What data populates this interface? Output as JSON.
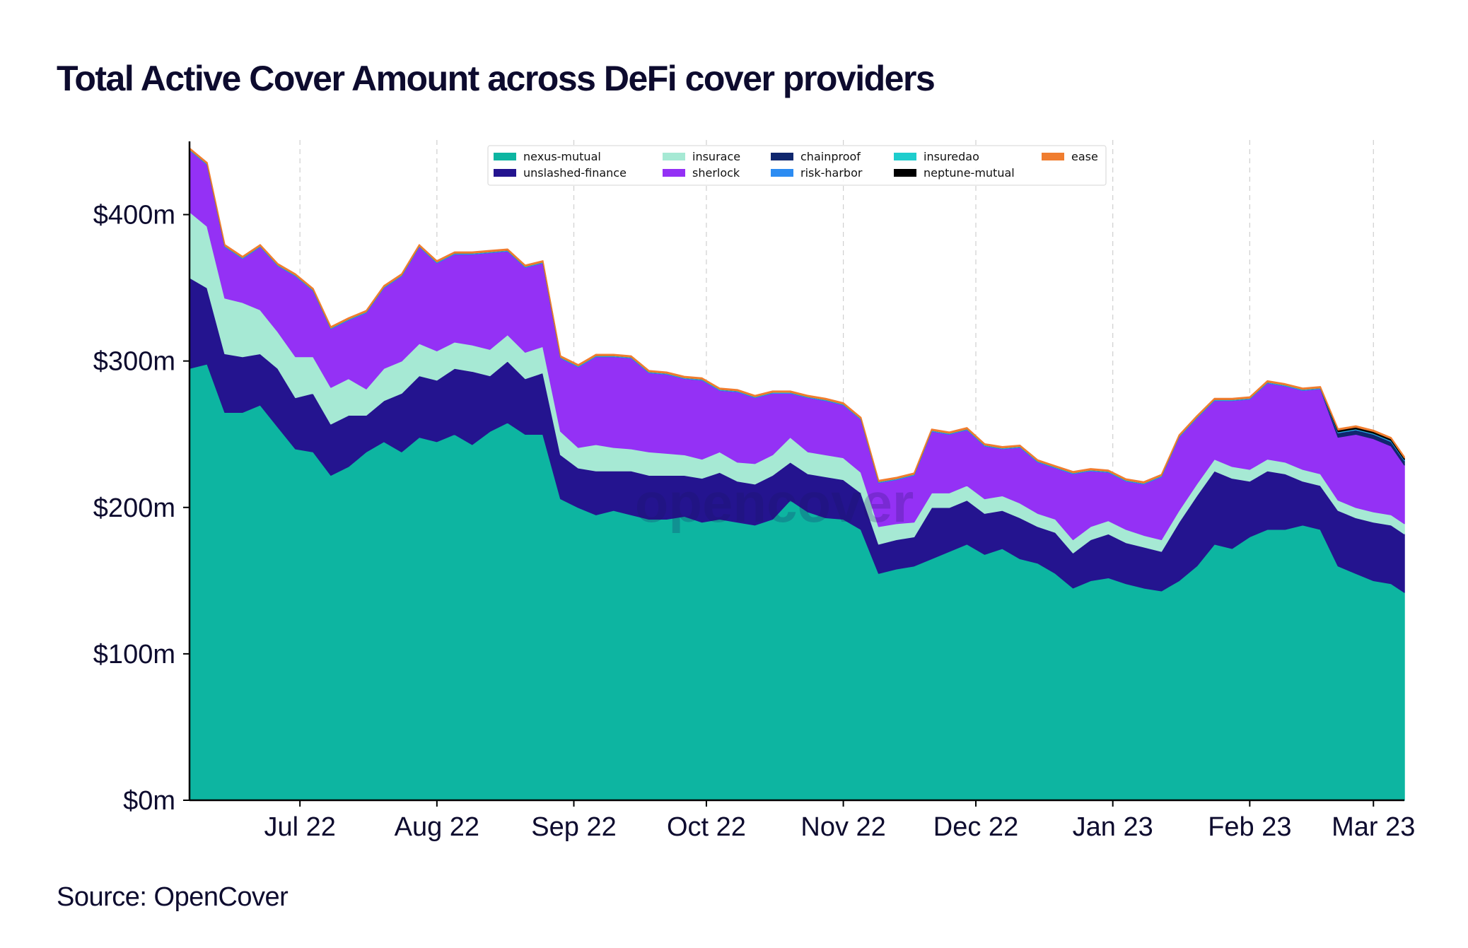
{
  "chart_data": {
    "type": "area",
    "stacked": true,
    "title": "Total Active Cover Amount across DeFi cover providers",
    "source": "Source: OpenCover",
    "watermark": "opencover",
    "xlabel": "",
    "ylabel": "",
    "x_range": [
      "2022-06-06",
      "2023-03-08"
    ],
    "ylim": [
      0,
      450
    ],
    "y_ticks": [
      0,
      100,
      200,
      300,
      400
    ],
    "y_tick_labels": [
      "$0m",
      "$100m",
      "$200m",
      "$300m",
      "$400m"
    ],
    "x_ticks": [
      "2022-07-01",
      "2022-08-01",
      "2022-09-01",
      "2022-10-01",
      "2022-11-01",
      "2022-12-01",
      "2023-01-01",
      "2023-02-01",
      "2023-03-01"
    ],
    "x_tick_labels": [
      "Jul 22",
      "Aug 22",
      "Sep 22",
      "Oct 22",
      "Nov 22",
      "Dec 22",
      "Jan 23",
      "Feb 23",
      "Mar 23"
    ],
    "grid": "vertical dashed at x ticks",
    "legend_placement": "top-center",
    "x": [
      "2022-06-06",
      "2022-06-10",
      "2022-06-14",
      "2022-06-18",
      "2022-06-22",
      "2022-06-26",
      "2022-06-30",
      "2022-07-04",
      "2022-07-08",
      "2022-07-12",
      "2022-07-16",
      "2022-07-20",
      "2022-07-24",
      "2022-07-28",
      "2022-08-01",
      "2022-08-05",
      "2022-08-09",
      "2022-08-13",
      "2022-08-17",
      "2022-08-21",
      "2022-08-25",
      "2022-08-29",
      "2022-09-02",
      "2022-09-06",
      "2022-09-10",
      "2022-09-14",
      "2022-09-18",
      "2022-09-22",
      "2022-09-26",
      "2022-09-30",
      "2022-10-04",
      "2022-10-08",
      "2022-10-12",
      "2022-10-16",
      "2022-10-20",
      "2022-10-24",
      "2022-10-28",
      "2022-11-01",
      "2022-11-05",
      "2022-11-09",
      "2022-11-13",
      "2022-11-17",
      "2022-11-21",
      "2022-11-25",
      "2022-11-29",
      "2022-12-03",
      "2022-12-07",
      "2022-12-11",
      "2022-12-15",
      "2022-12-19",
      "2022-12-23",
      "2022-12-27",
      "2022-12-31",
      "2023-01-04",
      "2023-01-08",
      "2023-01-12",
      "2023-01-16",
      "2023-01-20",
      "2023-01-24",
      "2023-01-28",
      "2023-02-01",
      "2023-02-05",
      "2023-02-09",
      "2023-02-13",
      "2023-02-17",
      "2023-02-21",
      "2023-02-25",
      "2023-03-01",
      "2023-03-05",
      "2023-03-08"
    ],
    "series": [
      {
        "name": "nexus-mutual",
        "color": "#0db5a1",
        "values": [
          295,
          298,
          265,
          265,
          270,
          255,
          240,
          238,
          222,
          228,
          238,
          245,
          238,
          248,
          245,
          250,
          243,
          252,
          258,
          250,
          250,
          206,
          200,
          195,
          198,
          195,
          192,
          192,
          194,
          190,
          192,
          190,
          188,
          192,
          205,
          197,
          193,
          192,
          185,
          155,
          158,
          160,
          165,
          170,
          175,
          168,
          172,
          165,
          162,
          155,
          145,
          150,
          152,
          148,
          145,
          143,
          150,
          160,
          175,
          172,
          180,
          185,
          185,
          188,
          185,
          160,
          155,
          150,
          148,
          142
        ]
      },
      {
        "name": "unslashed-finance",
        "color": "#24148f",
        "values": [
          62,
          52,
          40,
          38,
          35,
          40,
          35,
          40,
          35,
          35,
          25,
          28,
          40,
          42,
          42,
          45,
          50,
          38,
          42,
          38,
          42,
          30,
          27,
          30,
          27,
          30,
          30,
          30,
          28,
          30,
          32,
          28,
          28,
          30,
          26,
          26,
          28,
          27,
          25,
          20,
          20,
          20,
          35,
          30,
          30,
          28,
          26,
          28,
          25,
          28,
          24,
          28,
          30,
          28,
          28,
          27,
          40,
          48,
          50,
          48,
          38,
          40,
          38,
          30,
          30,
          38,
          38,
          40,
          40,
          40
        ]
      },
      {
        "name": "insurace",
        "color": "#a6e9d4",
        "values": [
          45,
          42,
          38,
          37,
          30,
          25,
          28,
          25,
          25,
          25,
          18,
          22,
          22,
          22,
          20,
          18,
          18,
          18,
          18,
          18,
          18,
          16,
          14,
          18,
          16,
          15,
          16,
          15,
          14,
          13,
          14,
          13,
          14,
          14,
          17,
          15,
          15,
          15,
          14,
          12,
          11,
          10,
          10,
          10,
          10,
          10,
          10,
          10,
          9,
          9,
          9,
          9,
          9,
          9,
          8,
          8,
          8,
          8,
          8,
          8,
          8,
          8,
          8,
          8,
          8,
          7,
          7,
          7,
          7,
          7
        ]
      },
      {
        "name": "sherlock",
        "color": "#9431f5",
        "values": [
          42,
          42,
          35,
          30,
          43,
          45,
          55,
          45,
          40,
          40,
          52,
          55,
          58,
          66,
          60,
          60,
          62,
          66,
          57,
          58,
          57,
          50,
          55,
          60,
          62,
          62,
          54,
          54,
          52,
          54,
          42,
          48,
          45,
          42,
          30,
          37,
          37,
          36,
          36,
          30,
          30,
          32,
          42,
          40,
          38,
          36,
          32,
          38,
          35,
          35,
          45,
          38,
          33,
          33,
          35,
          43,
          50,
          45,
          40,
          45,
          48,
          52,
          52,
          54,
          58,
          43,
          50,
          50,
          47,
          40
        ]
      },
      {
        "name": "chainproof",
        "color": "#10276e",
        "values": [
          0,
          0,
          0,
          0,
          0,
          0,
          0,
          0,
          0,
          0,
          0,
          0,
          0,
          0,
          0,
          0,
          0,
          0,
          0,
          0,
          0,
          0,
          0,
          0,
          0,
          0,
          0,
          0,
          0,
          0,
          0,
          0,
          0,
          0,
          0,
          0,
          0,
          0,
          0,
          0,
          0,
          0,
          0,
          0,
          0,
          0,
          0,
          0,
          0,
          0,
          0,
          0,
          0,
          0,
          0,
          0,
          0,
          0,
          0,
          0,
          0,
          0,
          0,
          0,
          0,
          3,
          3,
          3,
          3,
          3
        ]
      },
      {
        "name": "risk-harbor",
        "color": "#2c8cf2",
        "values": [
          0.4,
          0.4,
          0.4,
          0.4,
          0.4,
          0.4,
          0.4,
          0.4,
          0.4,
          0.4,
          0.4,
          0.4,
          0.4,
          0.4,
          0.4,
          0.4,
          0.4,
          0.4,
          0.4,
          0.4,
          0.4,
          0.4,
          0.4,
          0.4,
          0.4,
          0.4,
          0.4,
          0.4,
          0.4,
          0.4,
          0.4,
          0.4,
          0.4,
          0.4,
          0.4,
          0.4,
          0.4,
          0.4,
          0.4,
          0.4,
          0.4,
          0.4,
          0.4,
          0.4,
          0.4,
          0.4,
          0.4,
          0.4,
          0.4,
          0.4,
          0.4,
          0.4,
          0.4,
          0.4,
          0.4,
          0.4,
          0.4,
          0.4,
          0.4,
          0.4,
          0.4,
          0.4,
          0.4,
          0.4,
          0.4,
          0.4,
          0.4,
          0.4,
          0.4,
          0.4
        ]
      },
      {
        "name": "insuredao",
        "color": "#1ecdcd",
        "values": [
          0.3,
          0.3,
          0.3,
          0.3,
          0.3,
          0.3,
          0.3,
          0.3,
          0.3,
          0.3,
          0.3,
          0.3,
          0.3,
          0.3,
          0.3,
          0.3,
          0.3,
          0.3,
          0.3,
          0.3,
          0.3,
          0.3,
          0.3,
          0.3,
          0.3,
          0.3,
          0.3,
          0.3,
          0.3,
          0.3,
          0.3,
          0.3,
          0.3,
          0.3,
          0.3,
          0.3,
          0.3,
          0.3,
          0.3,
          0.3,
          0.3,
          0.3,
          0.3,
          0.3,
          0.3,
          0.3,
          0.3,
          0.3,
          0.3,
          0.3,
          0.3,
          0.3,
          0.3,
          0.3,
          0.3,
          0.3,
          0.3,
          0.3,
          0.3,
          0.3,
          0.3,
          0.3,
          0.3,
          0.3,
          0.3,
          0.3,
          0.3,
          0.3,
          0.3,
          0.3
        ]
      },
      {
        "name": "neptune-mutual",
        "color": "#000000",
        "values": [
          0,
          0,
          0,
          0,
          0,
          0,
          0,
          0,
          0,
          0,
          0,
          0,
          0,
          0,
          0,
          0,
          0,
          0,
          0,
          0,
          0,
          0,
          0,
          0,
          0,
          0,
          0,
          0,
          0,
          0,
          0,
          0,
          0,
          0,
          0,
          0,
          0,
          0,
          0,
          0,
          0,
          0,
          0,
          0,
          0,
          0,
          0,
          0,
          0,
          0,
          0,
          0,
          0,
          0,
          0,
          0,
          0,
          0,
          0,
          0,
          0,
          0,
          0,
          0,
          0,
          1.2,
          1.2,
          1.2,
          1.2,
          1.2
        ]
      },
      {
        "name": "ease",
        "color": "#f07d2f",
        "values": [
          0.8,
          0.8,
          0.8,
          0.8,
          0.8,
          0.8,
          0.8,
          0.8,
          0.8,
          0.8,
          0.8,
          0.8,
          0.8,
          0.8,
          0.8,
          0.8,
          0.8,
          0.8,
          0.8,
          0.8,
          0.8,
          0.8,
          0.8,
          0.8,
          0.8,
          0.8,
          0.8,
          0.8,
          0.8,
          0.8,
          0.8,
          0.8,
          0.8,
          0.8,
          0.8,
          0.8,
          0.8,
          0.8,
          0.8,
          0.8,
          0.8,
          0.8,
          0.8,
          0.8,
          0.8,
          0.8,
          0.8,
          0.8,
          0.8,
          0.8,
          0.8,
          0.8,
          0.8,
          0.8,
          0.8,
          0.8,
          0.8,
          0.8,
          0.8,
          0.8,
          0.8,
          0.8,
          0.8,
          0.8,
          0.8,
          0.8,
          0.8,
          0.8,
          0.8,
          0.8
        ]
      }
    ]
  }
}
